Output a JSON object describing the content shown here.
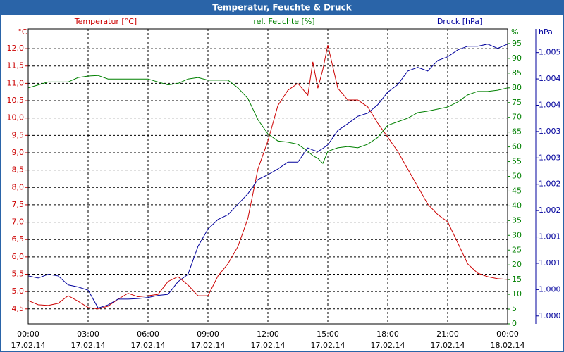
{
  "chart_data": {
    "type": "line",
    "title": "Temperatur, Feuchte & Druck",
    "x": [
      0,
      0.5,
      1,
      1.5,
      2,
      2.5,
      3,
      3.5,
      4,
      4.5,
      5,
      5.5,
      6,
      6.5,
      7,
      7.5,
      8,
      8.5,
      9,
      9.5,
      10,
      10.5,
      11,
      11.5,
      12,
      12.5,
      13,
      13.5,
      14,
      14.25,
      14.5,
      14.75,
      15,
      15.5,
      16,
      16.5,
      17,
      17.5,
      18,
      18.5,
      19,
      19.5,
      20,
      20.5,
      21,
      21.5,
      22,
      22.5,
      23,
      23.5,
      24
    ],
    "xlim": [
      0,
      24
    ],
    "xticks": [
      {
        "value": 0,
        "label": "00:00",
        "date": "17.02.14"
      },
      {
        "value": 3,
        "label": "03:00",
        "date": "17.02.14"
      },
      {
        "value": 6,
        "label": "06:00",
        "date": "17.02.14"
      },
      {
        "value": 9,
        "label": "09:00",
        "date": "17.02.14"
      },
      {
        "value": 12,
        "label": "12:00",
        "date": "17.02.14"
      },
      {
        "value": 15,
        "label": "15:00",
        "date": "17.02.14"
      },
      {
        "value": 18,
        "label": "18:00",
        "date": "17.02.14"
      },
      {
        "value": 21,
        "label": "21:00",
        "date": "17.02.14"
      },
      {
        "value": 24,
        "label": "00:00",
        "date": "18.02.14"
      }
    ],
    "y_unit": "°C",
    "ylim": [
      4.07,
      12.57
    ],
    "yticks": [
      {
        "value": 4.5,
        "label": "4,5"
      },
      {
        "value": 5,
        "label": "5,0"
      },
      {
        "value": 5.5,
        "label": "5,5"
      },
      {
        "value": 6,
        "label": "6,0"
      },
      {
        "value": 6.5,
        "label": "6,5"
      },
      {
        "value": 7,
        "label": "7,0"
      },
      {
        "value": 7.5,
        "label": "7,5"
      },
      {
        "value": 8,
        "label": "8,0"
      },
      {
        "value": 8.5,
        "label": "8,5"
      },
      {
        "value": 9,
        "label": "9,0"
      },
      {
        "value": 9.5,
        "label": "9,5"
      },
      {
        "value": 10,
        "label": "10,0"
      },
      {
        "value": 10.5,
        "label": "10,5"
      },
      {
        "value": 11,
        "label": "11,0"
      },
      {
        "value": 11.5,
        "label": "11,5"
      },
      {
        "value": 12,
        "label": "12,0"
      }
    ],
    "y2_unit": "%",
    "y2lim": [
      0,
      100
    ],
    "y2ticks": [
      0,
      5,
      10,
      15,
      20,
      25,
      30,
      35,
      40,
      45,
      50,
      55,
      60,
      65,
      70,
      75,
      80,
      85,
      90,
      95
    ],
    "y3_unit": "hPa",
    "y3lim": [
      0.9996,
      1.0052
    ],
    "y3ticks": [
      {
        "value": 0.99975,
        "label": "1.000"
      },
      {
        "value": 1.00025,
        "label": "1.000"
      },
      {
        "value": 1.00075,
        "label": "1.001"
      },
      {
        "value": 1.00125,
        "label": "1.001"
      },
      {
        "value": 1.00175,
        "label": "1.002"
      },
      {
        "value": 1.00225,
        "label": "1.002"
      },
      {
        "value": 1.00275,
        "label": "1.003"
      },
      {
        "value": 1.00325,
        "label": "1.003"
      },
      {
        "value": 1.00375,
        "label": "1.004"
      },
      {
        "value": 1.00425,
        "label": "1.004"
      },
      {
        "value": 1.00475,
        "label": "1.005"
      }
    ],
    "grid": true,
    "series": [
      {
        "name": "Temperatur [°C]",
        "color": "#cc0000",
        "axis": "y",
        "values": [
          4.74,
          4.62,
          4.6,
          4.66,
          4.88,
          4.72,
          4.54,
          4.5,
          4.58,
          4.78,
          4.95,
          4.85,
          4.88,
          4.92,
          5.29,
          5.43,
          5.19,
          4.88,
          4.88,
          5.45,
          5.8,
          6.3,
          7.11,
          8.53,
          9.34,
          10.36,
          10.8,
          11.0,
          10.66,
          11.62,
          10.86,
          11.4,
          12.1,
          10.86,
          10.52,
          10.52,
          10.32,
          9.85,
          9.45,
          9.04,
          8.53,
          8.03,
          7.52,
          7.22,
          7.01,
          6.41,
          5.8,
          5.53,
          5.43,
          5.37,
          5.35
        ]
      },
      {
        "name": "rel. Feuchte [%]",
        "color": "#008000",
        "axis": "y2",
        "values": [
          80,
          81,
          82,
          82,
          82,
          83.5,
          84,
          84.2,
          83,
          83,
          83,
          83,
          83,
          82,
          81,
          81.5,
          83,
          83.5,
          82.6,
          82.6,
          82.6,
          80,
          76.4,
          69.2,
          64.4,
          62,
          61.6,
          60.9,
          58.5,
          57,
          56.1,
          54.4,
          58.5,
          59.7,
          60.1,
          59.7,
          60.9,
          63.2,
          67.3,
          68.5,
          69.7,
          71.6,
          72.1,
          72.8,
          73.5,
          75.2,
          77.6,
          78.8,
          78.8,
          79.2,
          80
        ]
      },
      {
        "name": "Druck [hPa]",
        "color": "#00009c",
        "axis": "y3",
        "values": [
          1.00051,
          1.00047,
          1.00054,
          1.00051,
          1.00034,
          1.0003,
          1.00024,
          0.9999,
          0.99996,
          1.00007,
          1.00007,
          1.00008,
          1.0001,
          1.00014,
          1.00016,
          1.0004,
          1.00054,
          1.00107,
          1.0014,
          1.00158,
          1.00167,
          1.00187,
          1.00207,
          1.00234,
          1.00243,
          1.00254,
          1.00267,
          1.00267,
          1.00294,
          1.0029,
          1.00287,
          1.00293,
          1.003,
          1.00327,
          1.0034,
          1.00354,
          1.0036,
          1.00376,
          1.004,
          1.00414,
          1.0044,
          1.00447,
          1.0044,
          1.0046,
          1.00467,
          1.0048,
          1.00487,
          1.00487,
          1.00491,
          1.00483,
          1.00491
        ]
      }
    ]
  }
}
